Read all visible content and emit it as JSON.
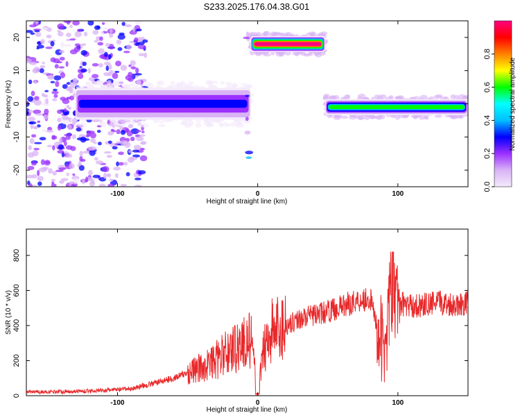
{
  "title": "S233.2025.176.04.38.G01",
  "chart_data": [
    {
      "type": "heatmap",
      "xlabel": "Height of straight line (km)",
      "ylabel": "Frequency (Hz)",
      "xlim": [
        -165,
        150
      ],
      "ylim": [
        -25,
        25
      ],
      "xticks": [
        -100,
        0,
        100
      ],
      "yticks": [
        -20,
        -10,
        0,
        10,
        20
      ],
      "colorbar": {
        "label": "Normalized spectral amplitude",
        "range": [
          0,
          1
        ],
        "ticks": [
          0.0,
          0.2,
          0.4,
          0.6,
          0.8
        ],
        "colors": [
          "#f4eafc",
          "#d9b3f5",
          "#9b30ff",
          "#0000ff",
          "#00bfff",
          "#00ffff",
          "#00ff00",
          "#ffff00",
          "#ff8000",
          "#ff0000",
          "#ff0080"
        ]
      },
      "features": [
        {
          "x_range": [
            -165,
            -80
          ],
          "freq_range": [
            -25,
            25
          ],
          "amplitude": 0.1
        },
        {
          "x_range": [
            -130,
            -5
          ],
          "freq_center": 0,
          "freq_halfwidth": 3,
          "amplitude": 0.3
        },
        {
          "x_range": [
            -8,
            -6
          ],
          "freq_range": [
            -25,
            25
          ],
          "amplitude": 0.15
        },
        {
          "x_range": [
            -5,
            48
          ],
          "freq_center": 18,
          "freq_halfwidth": 1.5,
          "amplitude": 0.95
        },
        {
          "x_range": [
            48,
            150
          ],
          "freq_center": -1,
          "freq_halfwidth": 1.5,
          "amplitude": 0.55
        }
      ]
    },
    {
      "type": "line",
      "xlabel": "Height of straight line (km)",
      "ylabel": "SNR (10 * v/v)",
      "xlim": [
        -165,
        150
      ],
      "ylim": [
        0,
        950
      ],
      "xticks": [
        -100,
        0,
        100
      ],
      "yticks": [
        0,
        200,
        400,
        600,
        800
      ],
      "series": [
        {
          "color": "#e8282a",
          "x": [
            -165,
            -150,
            -130,
            -110,
            -90,
            -80,
            -70,
            -60,
            -50,
            -40,
            -30,
            -20,
            -10,
            -5,
            0,
            5,
            10,
            20,
            30,
            40,
            50,
            60,
            70,
            80,
            90,
            95,
            100,
            110,
            120,
            130,
            140,
            150
          ],
          "y": [
            20,
            22,
            25,
            30,
            40,
            60,
            80,
            100,
            130,
            160,
            200,
            260,
            300,
            320,
            10,
            300,
            370,
            400,
            440,
            460,
            480,
            510,
            540,
            560,
            250,
            600,
            530,
            510,
            520,
            530,
            520,
            530
          ]
        }
      ]
    }
  ]
}
